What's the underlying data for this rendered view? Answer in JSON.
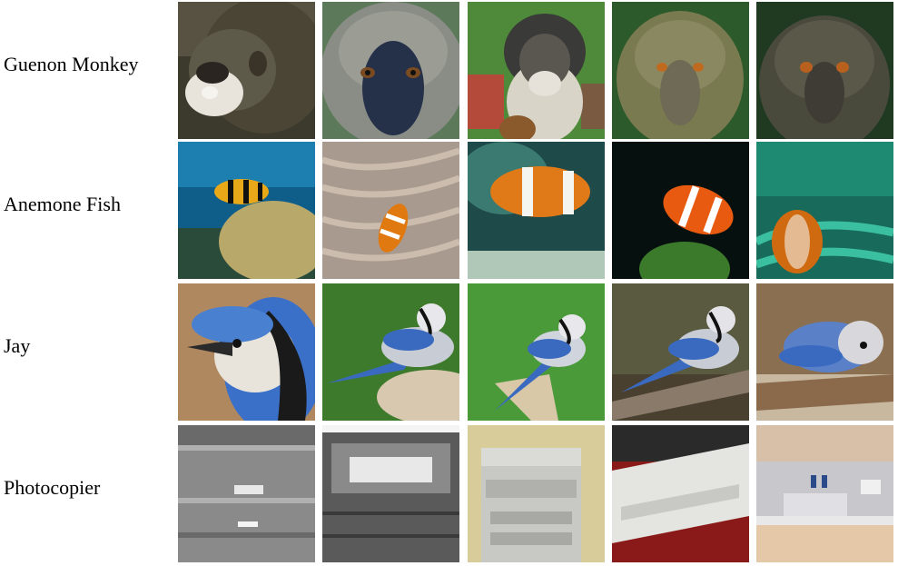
{
  "figure": {
    "rows": [
      {
        "label": "Guenon Monkey",
        "images": [
          "guenon-monkey-image-1",
          "guenon-monkey-image-2",
          "guenon-monkey-image-3",
          "guenon-monkey-image-4",
          "guenon-monkey-image-5"
        ]
      },
      {
        "label": "Anemone Fish",
        "images": [
          "anemone-fish-image-1",
          "anemone-fish-image-2",
          "anemone-fish-image-3",
          "anemone-fish-image-4",
          "anemone-fish-image-5"
        ]
      },
      {
        "label": "Jay",
        "images": [
          "jay-image-1",
          "jay-image-2",
          "jay-image-3",
          "jay-image-4",
          "jay-image-5"
        ]
      },
      {
        "label": "Photocopier",
        "images": [
          "photocopier-image-1",
          "photocopier-image-2",
          "photocopier-image-3",
          "photocopier-image-4",
          "photocopier-image-5"
        ]
      }
    ]
  }
}
